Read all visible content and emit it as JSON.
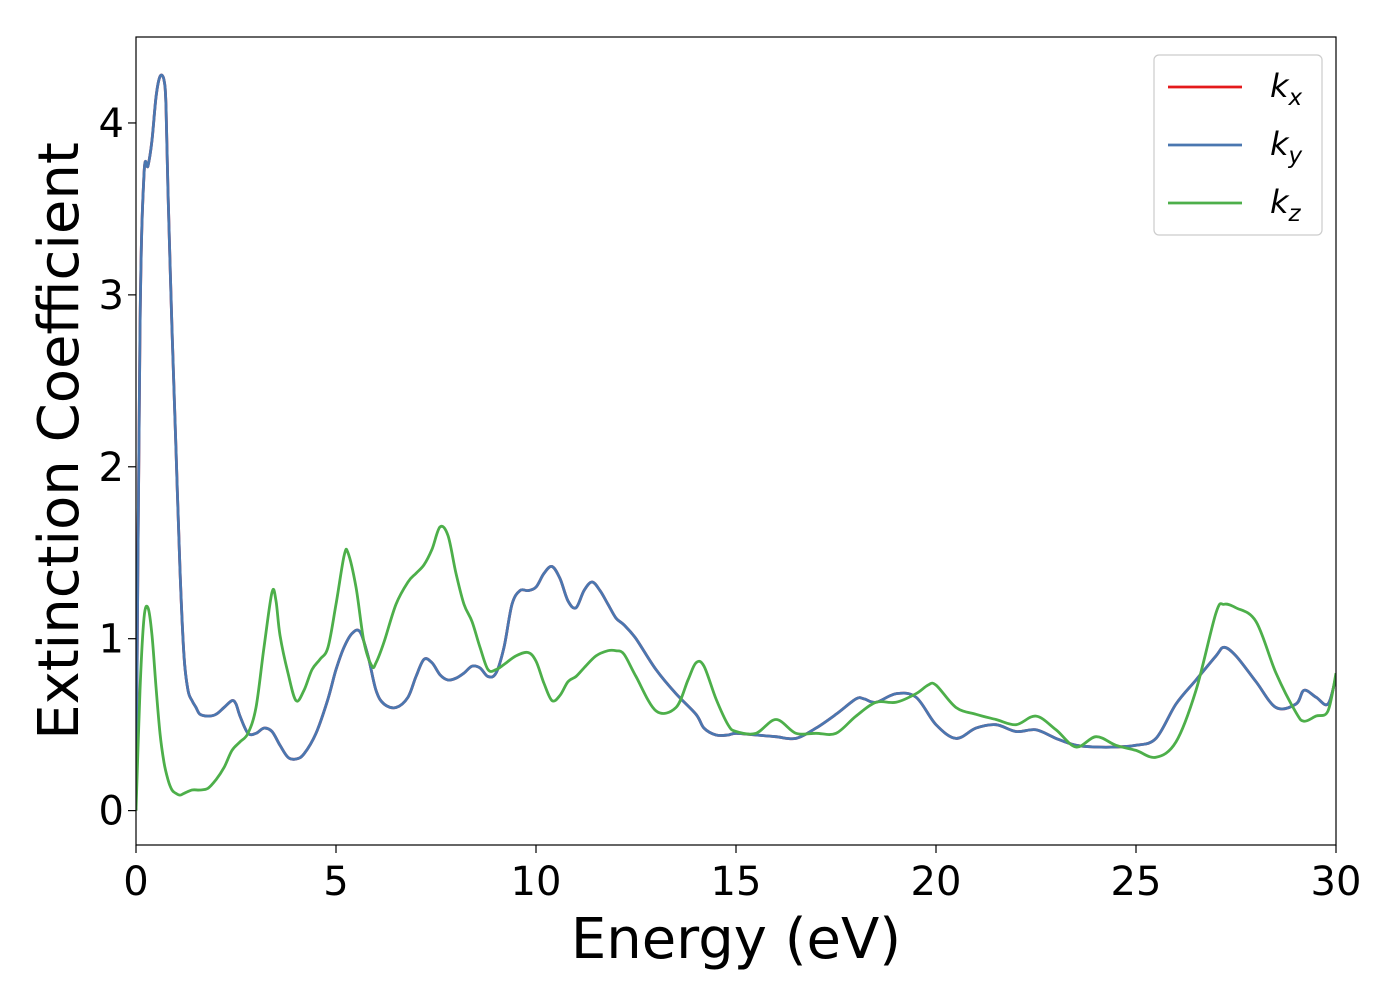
{
  "chart_data": {
    "type": "line",
    "title": "",
    "xlabel": "Energy (eV)",
    "ylabel": "Extinction Coefficient",
    "xlim": [
      0,
      30
    ],
    "ylim": [
      -0.2,
      4.5
    ],
    "xticks": [
      0,
      5,
      10,
      15,
      20,
      25,
      30
    ],
    "yticks": [
      0,
      1,
      2,
      3,
      4
    ],
    "grid": false,
    "legend_position": "top-right",
    "series": [
      {
        "name": "k",
        "subscript": "x",
        "color": "#e41a1c",
        "x": [
          0,
          0.1,
          0.2,
          0.3,
          0.4,
          0.5,
          0.6,
          0.7,
          0.75,
          0.8,
          0.9,
          1.0,
          1.1,
          1.2,
          1.3,
          1.4,
          1.5,
          1.6,
          1.8,
          2.0,
          2.2,
          2.4,
          2.5,
          2.6,
          2.8,
          3.0,
          3.2,
          3.4,
          3.6,
          3.8,
          4.0,
          4.2,
          4.5,
          4.8,
          5.0,
          5.2,
          5.4,
          5.6,
          5.8,
          6.0,
          6.2,
          6.5,
          6.8,
          7.0,
          7.2,
          7.4,
          7.6,
          7.8,
          8.0,
          8.2,
          8.4,
          8.6,
          8.8,
          9.0,
          9.2,
          9.4,
          9.6,
          9.8,
          10.0,
          10.2,
          10.4,
          10.6,
          10.8,
          11.0,
          11.2,
          11.4,
          11.6,
          11.8,
          12.0,
          12.2,
          12.5,
          13.0,
          13.5,
          14.0,
          14.2,
          14.5,
          14.8,
          15.0,
          15.5,
          16.0,
          16.5,
          17.0,
          17.5,
          18.0,
          18.2,
          18.5,
          19.0,
          19.5,
          20.0,
          20.5,
          21.0,
          21.5,
          22.0,
          22.5,
          23.0,
          23.5,
          24.0,
          24.5,
          25.0,
          25.5,
          26.0,
          26.5,
          27.0,
          27.2,
          27.5,
          28.0,
          28.5,
          29.0,
          29.2,
          29.5,
          29.8,
          30.0
        ],
        "y": [
          0,
          2.8,
          3.7,
          3.75,
          3.9,
          4.15,
          4.27,
          4.25,
          4.1,
          3.6,
          2.8,
          2.1,
          1.4,
          0.9,
          0.7,
          0.64,
          0.6,
          0.56,
          0.55,
          0.56,
          0.6,
          0.64,
          0.62,
          0.55,
          0.45,
          0.45,
          0.48,
          0.46,
          0.38,
          0.31,
          0.3,
          0.33,
          0.45,
          0.65,
          0.82,
          0.95,
          1.03,
          1.04,
          0.9,
          0.7,
          0.62,
          0.6,
          0.66,
          0.78,
          0.88,
          0.86,
          0.79,
          0.76,
          0.77,
          0.8,
          0.84,
          0.83,
          0.78,
          0.8,
          0.95,
          1.2,
          1.28,
          1.28,
          1.3,
          1.38,
          1.42,
          1.35,
          1.22,
          1.18,
          1.28,
          1.33,
          1.28,
          1.2,
          1.12,
          1.08,
          1.0,
          0.82,
          0.68,
          0.56,
          0.48,
          0.44,
          0.44,
          0.45,
          0.44,
          0.43,
          0.42,
          0.48,
          0.56,
          0.65,
          0.65,
          0.63,
          0.68,
          0.66,
          0.5,
          0.42,
          0.48,
          0.5,
          0.46,
          0.47,
          0.42,
          0.38,
          0.37,
          0.37,
          0.38,
          0.42,
          0.62,
          0.76,
          0.9,
          0.95,
          0.9,
          0.75,
          0.6,
          0.62,
          0.7,
          0.66,
          0.62,
          0.78
        ]
      },
      {
        "name": "k",
        "subscript": "y",
        "color": "#4a77b0",
        "x": [
          0,
          0.1,
          0.2,
          0.3,
          0.4,
          0.5,
          0.6,
          0.7,
          0.75,
          0.8,
          0.9,
          1.0,
          1.1,
          1.2,
          1.3,
          1.4,
          1.5,
          1.6,
          1.8,
          2.0,
          2.2,
          2.4,
          2.5,
          2.6,
          2.8,
          3.0,
          3.2,
          3.4,
          3.6,
          3.8,
          4.0,
          4.2,
          4.5,
          4.8,
          5.0,
          5.2,
          5.4,
          5.6,
          5.8,
          6.0,
          6.2,
          6.5,
          6.8,
          7.0,
          7.2,
          7.4,
          7.6,
          7.8,
          8.0,
          8.2,
          8.4,
          8.6,
          8.8,
          9.0,
          9.2,
          9.4,
          9.6,
          9.8,
          10.0,
          10.2,
          10.4,
          10.6,
          10.8,
          11.0,
          11.2,
          11.4,
          11.6,
          11.8,
          12.0,
          12.2,
          12.5,
          13.0,
          13.5,
          14.0,
          14.2,
          14.5,
          14.8,
          15.0,
          15.5,
          16.0,
          16.5,
          17.0,
          17.5,
          18.0,
          18.2,
          18.5,
          19.0,
          19.5,
          20.0,
          20.5,
          21.0,
          21.5,
          22.0,
          22.5,
          23.0,
          23.5,
          24.0,
          24.5,
          25.0,
          25.5,
          26.0,
          26.5,
          27.0,
          27.2,
          27.5,
          28.0,
          28.5,
          29.0,
          29.2,
          29.5,
          29.8,
          30.0
        ],
        "y": [
          0,
          2.8,
          3.7,
          3.75,
          3.9,
          4.15,
          4.27,
          4.25,
          4.1,
          3.6,
          2.8,
          2.1,
          1.4,
          0.9,
          0.7,
          0.64,
          0.6,
          0.56,
          0.55,
          0.56,
          0.6,
          0.64,
          0.62,
          0.55,
          0.45,
          0.45,
          0.48,
          0.46,
          0.38,
          0.31,
          0.3,
          0.33,
          0.45,
          0.65,
          0.82,
          0.95,
          1.03,
          1.04,
          0.9,
          0.7,
          0.62,
          0.6,
          0.66,
          0.78,
          0.88,
          0.86,
          0.79,
          0.76,
          0.77,
          0.8,
          0.84,
          0.83,
          0.78,
          0.8,
          0.95,
          1.2,
          1.28,
          1.28,
          1.3,
          1.38,
          1.42,
          1.35,
          1.22,
          1.18,
          1.28,
          1.33,
          1.28,
          1.2,
          1.12,
          1.08,
          1.0,
          0.82,
          0.68,
          0.56,
          0.48,
          0.44,
          0.44,
          0.45,
          0.44,
          0.43,
          0.42,
          0.48,
          0.56,
          0.65,
          0.65,
          0.63,
          0.68,
          0.66,
          0.5,
          0.42,
          0.48,
          0.5,
          0.46,
          0.47,
          0.42,
          0.38,
          0.37,
          0.37,
          0.38,
          0.42,
          0.62,
          0.76,
          0.9,
          0.95,
          0.9,
          0.75,
          0.6,
          0.62,
          0.7,
          0.66,
          0.62,
          0.78
        ]
      },
      {
        "name": "k",
        "subscript": "z",
        "color": "#4daf4a",
        "x": [
          0,
          0.1,
          0.2,
          0.3,
          0.4,
          0.5,
          0.6,
          0.7,
          0.8,
          0.9,
          1.0,
          1.1,
          1.2,
          1.4,
          1.6,
          1.8,
          2.0,
          2.2,
          2.4,
          2.6,
          2.8,
          3.0,
          3.2,
          3.4,
          3.5,
          3.6,
          3.8,
          4.0,
          4.2,
          4.4,
          4.6,
          4.8,
          5.0,
          5.2,
          5.3,
          5.5,
          5.7,
          5.9,
          6.0,
          6.2,
          6.5,
          6.8,
          7.0,
          7.2,
          7.4,
          7.6,
          7.8,
          8.0,
          8.2,
          8.4,
          8.6,
          8.8,
          9.0,
          9.2,
          9.5,
          9.8,
          10.0,
          10.2,
          10.4,
          10.6,
          10.8,
          11.0,
          11.2,
          11.5,
          11.8,
          12.0,
          12.2,
          12.5,
          13.0,
          13.5,
          13.8,
          14.0,
          14.2,
          14.5,
          14.8,
          15.0,
          15.5,
          16.0,
          16.5,
          17.0,
          17.5,
          18.0,
          18.5,
          19.0,
          19.5,
          19.8,
          20.0,
          20.5,
          21.0,
          21.5,
          22.0,
          22.5,
          23.0,
          23.5,
          24.0,
          24.5,
          25.0,
          25.5,
          26.0,
          26.5,
          27.0,
          27.2,
          27.5,
          28.0,
          28.5,
          29.0,
          29.2,
          29.5,
          29.8,
          30.0
        ],
        "y": [
          0,
          0.7,
          1.12,
          1.18,
          1.02,
          0.72,
          0.45,
          0.28,
          0.18,
          0.12,
          0.1,
          0.09,
          0.1,
          0.12,
          0.12,
          0.13,
          0.18,
          0.25,
          0.35,
          0.4,
          0.45,
          0.6,
          0.95,
          1.27,
          1.22,
          1.02,
          0.8,
          0.64,
          0.7,
          0.82,
          0.88,
          0.95,
          1.2,
          1.48,
          1.5,
          1.3,
          0.98,
          0.84,
          0.86,
          0.98,
          1.2,
          1.33,
          1.38,
          1.43,
          1.52,
          1.65,
          1.6,
          1.38,
          1.2,
          1.1,
          0.95,
          0.82,
          0.82,
          0.85,
          0.9,
          0.92,
          0.87,
          0.74,
          0.64,
          0.67,
          0.75,
          0.78,
          0.83,
          0.9,
          0.93,
          0.93,
          0.91,
          0.78,
          0.58,
          0.6,
          0.76,
          0.86,
          0.84,
          0.65,
          0.5,
          0.46,
          0.45,
          0.53,
          0.45,
          0.45,
          0.45,
          0.55,
          0.63,
          0.63,
          0.68,
          0.73,
          0.73,
          0.6,
          0.56,
          0.53,
          0.5,
          0.55,
          0.47,
          0.37,
          0.43,
          0.38,
          0.35,
          0.31,
          0.4,
          0.7,
          1.15,
          1.2,
          1.18,
          1.1,
          0.8,
          0.57,
          0.52,
          0.55,
          0.58,
          0.8
        ]
      }
    ]
  }
}
